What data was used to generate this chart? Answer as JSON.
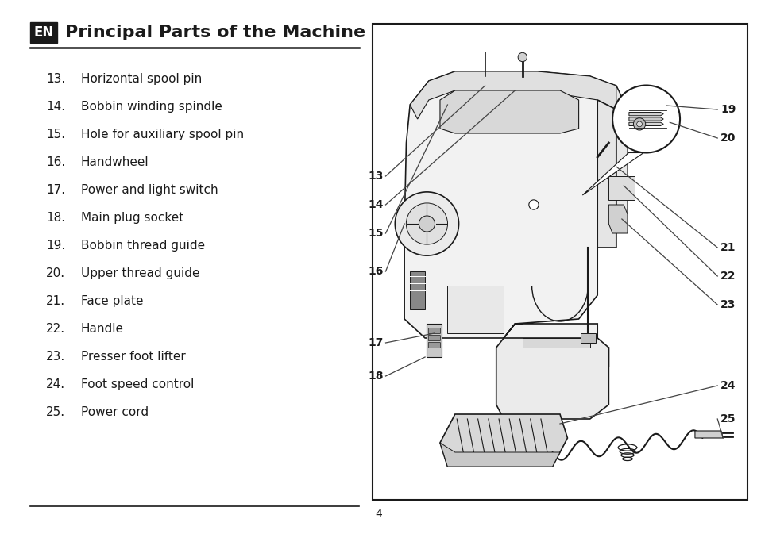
{
  "title": "Principal Parts of the Machine",
  "title_badge": "EN",
  "page_number": "4",
  "background_color": "#ffffff",
  "text_color": "#1a1a1a",
  "items": [
    {
      "num": "13.",
      "text": "Horizontal spool pin"
    },
    {
      "num": "14.",
      "text": "Bobbin winding spindle"
    },
    {
      "num": "15.",
      "text": "Hole for auxiliary spool pin"
    },
    {
      "num": "16.",
      "text": "Handwheel"
    },
    {
      "num": "17.",
      "text": "Power and light switch"
    },
    {
      "num": "18.",
      "text": "Main plug socket"
    },
    {
      "num": "19.",
      "text": "Bobbin thread guide"
    },
    {
      "num": "20.",
      "text": "Upper thread guide"
    },
    {
      "num": "21.",
      "text": "Face plate"
    },
    {
      "num": "22.",
      "text": "Handle"
    },
    {
      "num": "23.",
      "text": "Presser foot lifter"
    },
    {
      "num": "24.",
      "text": "Foot speed control"
    },
    {
      "num": "25.",
      "text": "Power cord"
    }
  ],
  "badge_bg": "#1a1a1a",
  "badge_fg": "#ffffff",
  "line_color": "#1a1a1a",
  "right_box_color": "#1a1a1a"
}
